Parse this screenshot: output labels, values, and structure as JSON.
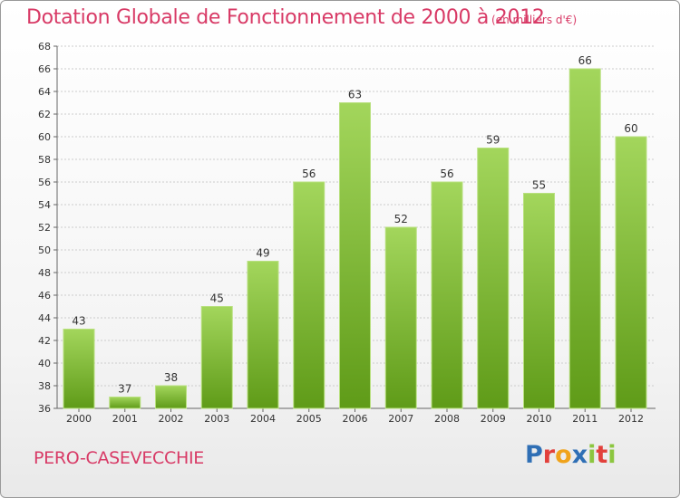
{
  "header": {
    "title": "Dotation Globale de Fonctionnement de 2000 à 2012",
    "unit": "(en milliers d'€)"
  },
  "footer": {
    "commune": "PERO-CASEVECCHIE",
    "logo": {
      "text": "Proxiti",
      "letters": [
        {
          "ch": "P",
          "color": "#2f6fb5"
        },
        {
          "ch": "r",
          "color": "#e2403b"
        },
        {
          "ch": "o",
          "color": "#f0a31b"
        },
        {
          "ch": "x",
          "color": "#2f6fb5"
        },
        {
          "ch": "i",
          "color": "#8cc63f"
        },
        {
          "ch": "t",
          "color": "#e2403b"
        },
        {
          "ch": "i",
          "color": "#8cc63f"
        }
      ]
    }
  },
  "colors": {
    "accent": "#d83a66",
    "bar_light": "#9fd45a",
    "bar_dark": "#5e9a18",
    "grid": "#cccccc"
  },
  "chart_data": {
    "type": "bar",
    "title": "Dotation Globale de Fonctionnement de 2000 à 2012",
    "subtitle": "(en milliers d'€)",
    "categories": [
      "2000",
      "2001",
      "2002",
      "2003",
      "2004",
      "2005",
      "2006",
      "2007",
      "2008",
      "2009",
      "2010",
      "2011",
      "2012"
    ],
    "values": [
      43,
      37,
      38,
      45,
      49,
      56,
      63,
      52,
      56,
      59,
      55,
      66,
      60
    ],
    "ylim": [
      36,
      68
    ],
    "yticks": [
      36,
      38,
      40,
      42,
      44,
      46,
      48,
      50,
      52,
      54,
      56,
      58,
      60,
      62,
      64,
      66,
      68
    ],
    "grid": true,
    "data_labels": true
  }
}
